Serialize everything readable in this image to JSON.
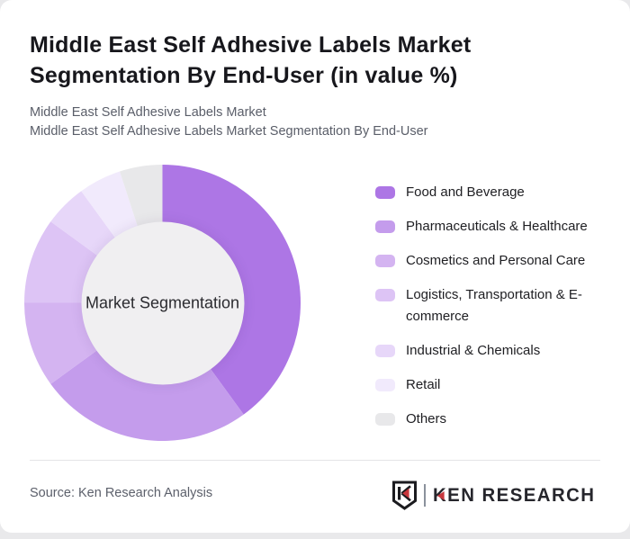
{
  "header": {
    "title_full": "Middle East Self Adhesive Labels Market Segmentation By End-User (in value %)",
    "title_lines": [
      "Middle East Self Adhesive Labels Market",
      "Segmentation By End-User (in value %)"
    ],
    "subtitle_line1": "Middle East Self Adhesive Labels Market",
    "subtitle_line2": "Middle East Self Adhesive Labels Market Segmentation By End-User"
  },
  "chart_data": {
    "type": "pie",
    "subtype": "donut",
    "title": "Middle East Self Adhesive Labels Market Segmentation By End-User (in value %)",
    "center_label": "Market Segmentation",
    "start_angle_deg": 0,
    "direction": "clockwise",
    "hole_ratio": 0.59,
    "legend_position": "right",
    "data_labels_shown": false,
    "segments": [
      {
        "label": "Food and Beverage",
        "value": 40,
        "color": "#ad76e5"
      },
      {
        "label": "Pharmaceuticals & Healthcare",
        "value": 25,
        "color": "#c49cec"
      },
      {
        "label": "Cosmetics and Personal Care",
        "value": 10,
        "color": "#d4b4f1"
      },
      {
        "label": "Logistics, Transportation & E-commerce",
        "value": 10,
        "color": "#ddc4f5"
      },
      {
        "label": "Industrial & Chemicals",
        "value": 5,
        "color": "#e7d7f9"
      },
      {
        "label": "Retail",
        "value": 5,
        "color": "#f1eafc"
      },
      {
        "label": "Others",
        "value": 5,
        "color": "#e8e8ea"
      }
    ]
  },
  "footer": {
    "source": "Source: Ken Research Analysis",
    "brand": "KEN RESEARCH"
  },
  "colors": {
    "page_bg": "#e9e9eb",
    "card_bg": "#ffffff",
    "hole_bg": "#f0eff1",
    "logo_red": "#c8373d",
    "logo_ink": "#26262c"
  }
}
